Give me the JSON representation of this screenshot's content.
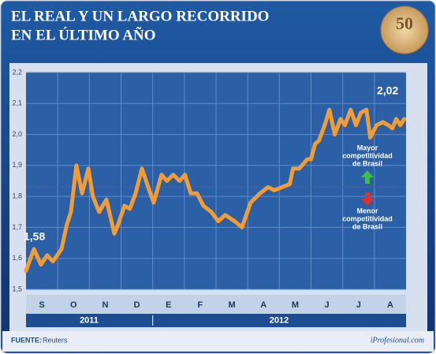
{
  "chart_data": {
    "type": "line",
    "title": [
      "EL REAL Y UN LARGO RECORRIDO",
      "EN EL ÚLTIMO AÑO"
    ],
    "categories": [
      "S",
      "O",
      "N",
      "D",
      "E",
      "F",
      "M",
      "A",
      "M",
      "J",
      "J",
      "A"
    ],
    "years": [
      "2011",
      "2012"
    ],
    "series": [
      {
        "color": "#f39c34",
        "x": [
          0,
          0.25,
          0.47,
          0.67,
          0.85,
          1.12,
          1.29,
          1.42,
          1.59,
          1.77,
          1.97,
          2.11,
          2.31,
          2.54,
          2.79,
          2.91,
          3.11,
          3.28,
          3.46,
          3.66,
          3.86,
          4.03,
          4.28,
          4.45,
          4.65,
          4.85,
          5.02,
          5.2,
          5.4,
          5.6,
          5.85,
          6.07,
          6.29,
          6.59,
          6.82,
          7.09,
          7.39,
          7.64,
          7.84,
          8.08,
          8.33,
          8.43,
          8.63,
          8.88,
          9.0,
          9.13,
          9.25,
          9.43,
          9.58,
          9.75,
          9.93,
          10.07,
          10.25,
          10.42,
          10.57,
          10.75,
          10.87,
          11.07,
          11.27,
          11.44,
          11.57,
          11.69,
          11.82,
          11.94
        ],
        "values": [
          1.56,
          1.63,
          1.58,
          1.61,
          1.59,
          1.63,
          1.71,
          1.75,
          1.9,
          1.81,
          1.89,
          1.8,
          1.75,
          1.79,
          1.68,
          1.71,
          1.77,
          1.76,
          1.81,
          1.89,
          1.83,
          1.78,
          1.87,
          1.85,
          1.87,
          1.85,
          1.87,
          1.81,
          1.81,
          1.77,
          1.75,
          1.72,
          1.74,
          1.72,
          1.7,
          1.78,
          1.81,
          1.83,
          1.82,
          1.83,
          1.84,
          1.89,
          1.89,
          1.92,
          1.92,
          1.97,
          1.98,
          2.03,
          2.08,
          2.0,
          2.05,
          2.03,
          2.08,
          2.03,
          2.07,
          2.08,
          1.99,
          2.03,
          2.04,
          2.03,
          2.02,
          2.05,
          2.03,
          2.05
        ]
      }
    ],
    "xlim": [
      0,
      12
    ],
    "ylim": [
      1.5,
      2.2
    ],
    "yticks": [
      {
        "value": 1.5,
        "label": "1,5"
      },
      {
        "value": 1.6,
        "label": "1,6"
      },
      {
        "value": 1.7,
        "label": "1,7"
      },
      {
        "value": 1.8,
        "label": "1,8"
      },
      {
        "value": 1.9,
        "label": "1,9"
      },
      {
        "value": 2.0,
        "label": "2,0"
      },
      {
        "value": 2.1,
        "label": "2,1"
      },
      {
        "value": 2.2,
        "label": "2,2"
      }
    ],
    "grid": true,
    "reference_line": 1.83,
    "annotations": {
      "start": "1,58",
      "end": "2,02",
      "upper": [
        "Mayor",
        "competitividad",
        "de Brasil"
      ],
      "lower": [
        "Menor",
        "competitividad",
        "de Brasil"
      ]
    },
    "source_label": "FUENTE:",
    "source": "Reuters",
    "credit": "iProfesional.com"
  }
}
